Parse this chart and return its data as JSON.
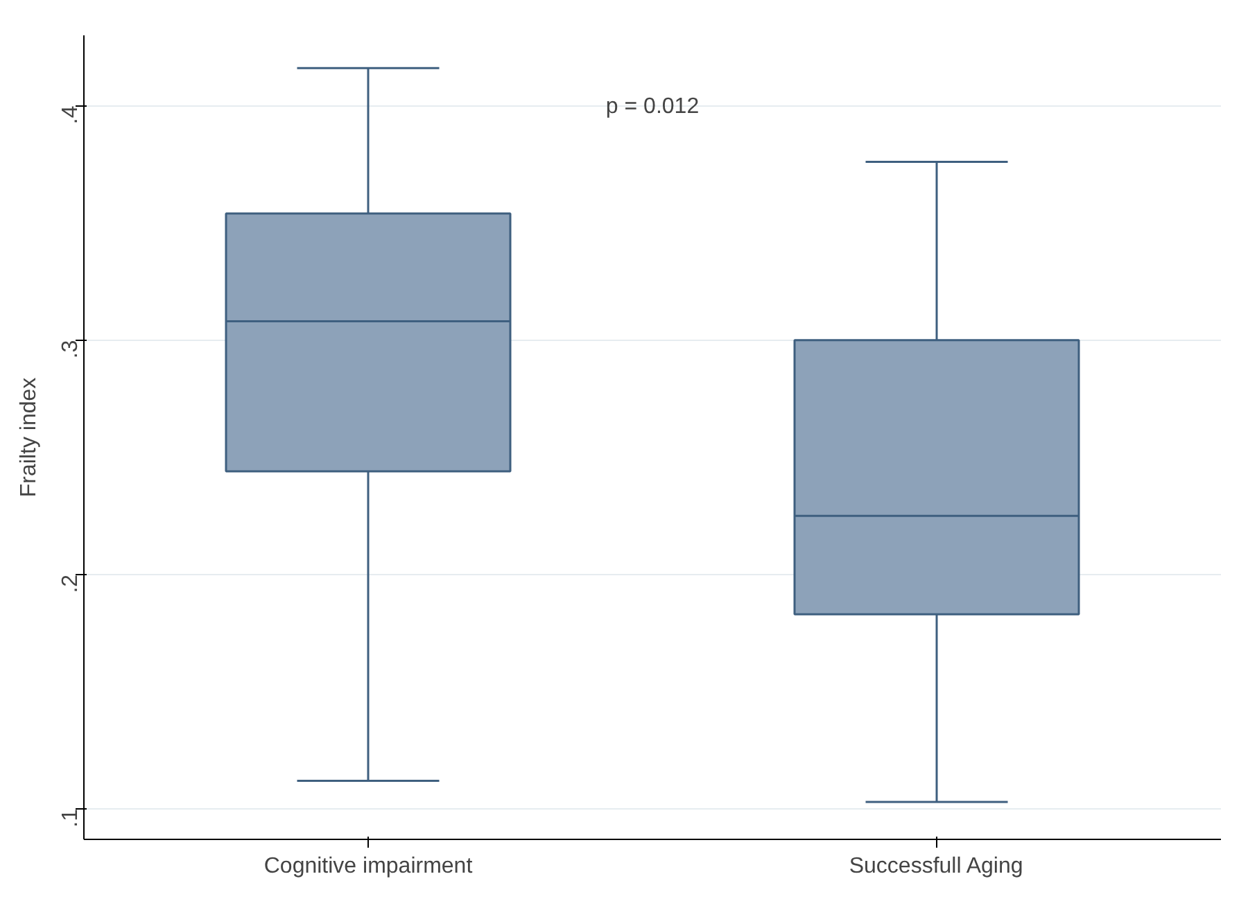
{
  "chart_data": {
    "type": "box",
    "ylabel": "Frailty index",
    "categories": [
      "Cognitive impairment",
      "Successfull Aging"
    ],
    "boxes": [
      {
        "low": 0.112,
        "q1": 0.244,
        "median": 0.308,
        "q3": 0.354,
        "high": 0.416
      },
      {
        "low": 0.103,
        "q1": 0.183,
        "median": 0.225,
        "q3": 0.3,
        "high": 0.376
      }
    ],
    "color": "#8da2b9",
    "ylim": [
      0.087,
      0.43
    ],
    "yticks": [
      {
        "value": 0.1,
        "label": ".1"
      },
      {
        "value": 0.2,
        "label": ".2"
      },
      {
        "value": 0.3,
        "label": ".3"
      },
      {
        "value": 0.4,
        "label": ".4"
      }
    ],
    "grid": "y",
    "annotations": [
      "p = 0.012"
    ]
  }
}
